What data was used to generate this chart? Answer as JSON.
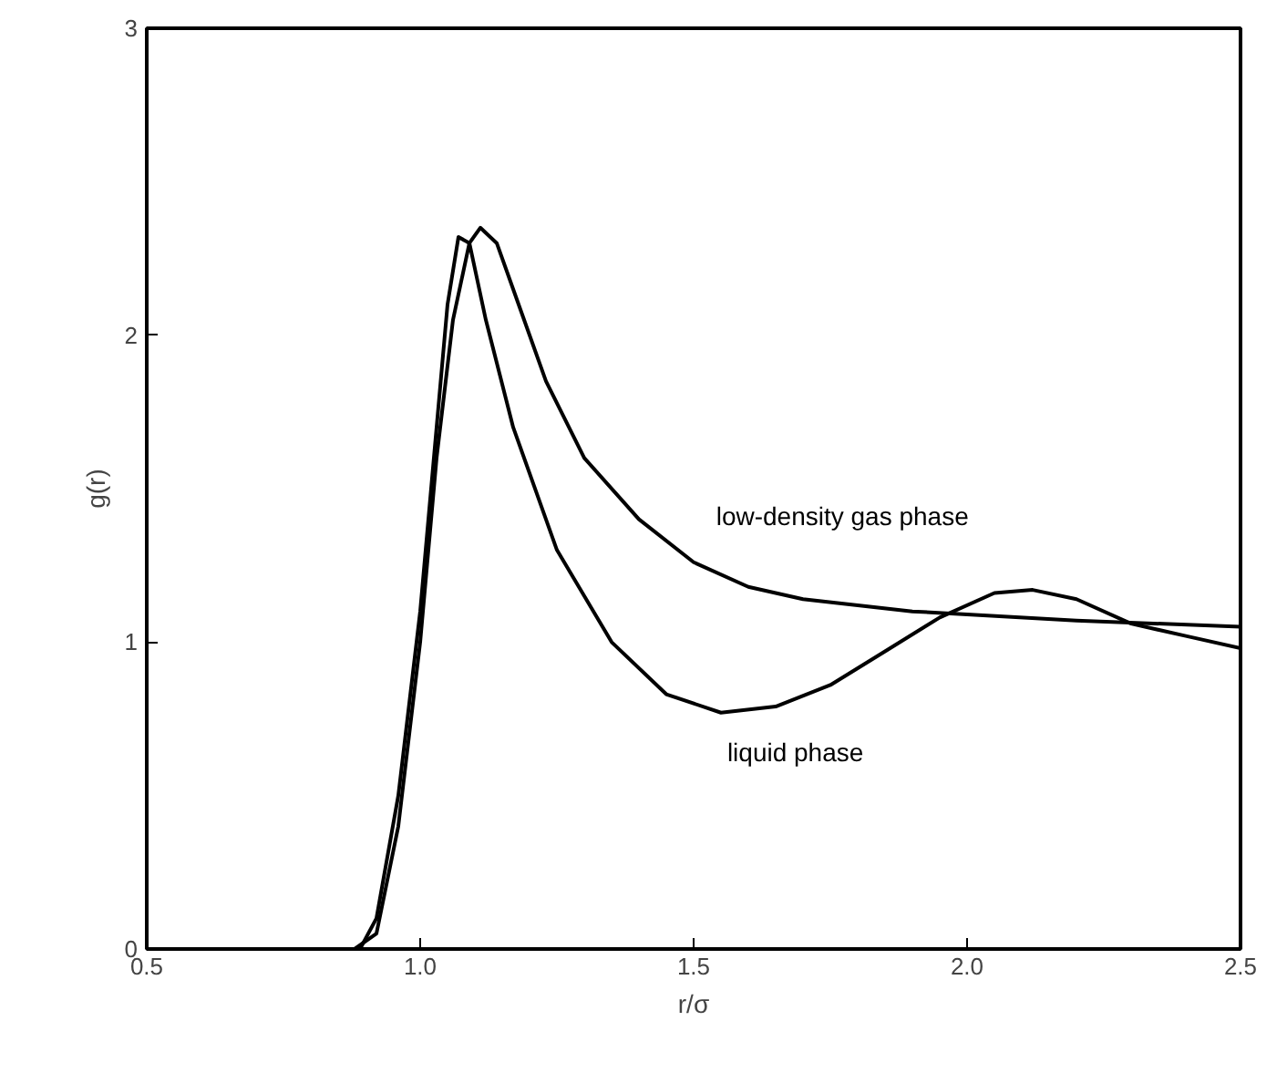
{
  "chart_data": {
    "type": "line",
    "xlabel": "r/σ",
    "ylabel": "g(r)",
    "xlim": [
      0.5,
      2.5
    ],
    "ylim": [
      0,
      3
    ],
    "xticks": [
      0.5,
      {
        "value": 1,
        "label": "1.0"
      },
      1.5,
      {
        "value": 2,
        "label": "2.0"
      },
      2.5
    ],
    "yticks": [
      0,
      1,
      2,
      3
    ],
    "grid": false,
    "line_style": "solid",
    "series": [
      {
        "name": "low-density gas phase",
        "color": "#000000",
        "x": [
          0.5,
          0.88,
          0.92,
          0.96,
          1.0,
          1.03,
          1.06,
          1.09,
          1.11,
          1.14,
          1.18,
          1.23,
          1.3,
          1.4,
          1.5,
          1.6,
          1.7,
          1.8,
          1.9,
          2.0,
          2.2,
          2.5
        ],
        "values": [
          0,
          0,
          0.05,
          0.4,
          1.0,
          1.6,
          2.05,
          2.3,
          2.35,
          2.3,
          2.1,
          1.85,
          1.6,
          1.4,
          1.26,
          1.18,
          1.14,
          1.12,
          1.1,
          1.09,
          1.07,
          1.05
        ]
      },
      {
        "name": "liquid phase",
        "color": "#000000",
        "x": [
          0.5,
          0.89,
          0.92,
          0.96,
          1.0,
          1.03,
          1.05,
          1.07,
          1.09,
          1.12,
          1.17,
          1.25,
          1.35,
          1.45,
          1.55,
          1.65,
          1.75,
          1.85,
          1.95,
          2.05,
          2.12,
          2.2,
          2.3,
          2.4,
          2.5
        ],
        "values": [
          0,
          0,
          0.1,
          0.5,
          1.1,
          1.7,
          2.1,
          2.32,
          2.3,
          2.05,
          1.7,
          1.3,
          1.0,
          0.83,
          0.77,
          0.79,
          0.86,
          0.97,
          1.08,
          1.16,
          1.17,
          1.14,
          1.06,
          1.02,
          0.98
        ]
      }
    ]
  }
}
